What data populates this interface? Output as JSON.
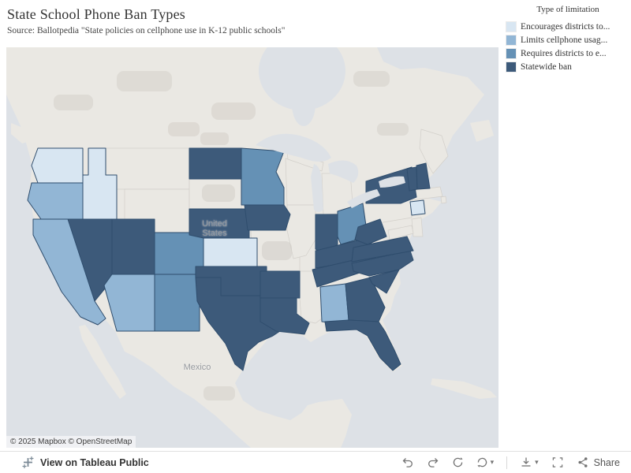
{
  "header": {
    "title": "State School Phone Ban Types",
    "subtitle": "Source: Ballotpedia \"State policies on cellphone use in K-12 public schools\""
  },
  "legend": {
    "title": "Type of limitation",
    "items": [
      {
        "label": "Encourages districts to...",
        "color": "#d8e6f2"
      },
      {
        "label": "Limits cellphone usag...",
        "color": "#92b6d5"
      },
      {
        "label": "Requires districts to e...",
        "color": "#6591b5"
      },
      {
        "label": "Statewide ban",
        "color": "#3d5a7a"
      }
    ]
  },
  "map": {
    "labels": {
      "country_us": "United States",
      "country_mx": "Mexico"
    },
    "attribution": "© 2025 Mapbox  © OpenStreetMap"
  },
  "toolbar": {
    "view_on_tableau": "View on Tableau Public",
    "share_label": "Share"
  },
  "chart_data": {
    "type": "choropleth",
    "title": "State School Phone Ban Types",
    "source": "Ballotpedia \"State policies on cellphone use in K-12 public schools\"",
    "legend_title": "Type of limitation",
    "region": "United States",
    "colors": {
      "land": "#eae8e3",
      "water": "#dde1e6",
      "no_data_border": "#d2cfca",
      "state_border": "#2f4d6d"
    },
    "categories": [
      {
        "label": "Encourages districts to...",
        "color": "#d8e6f2",
        "states": [
          "Washington",
          "Idaho",
          "Kansas",
          "Connecticut"
        ]
      },
      {
        "label": "Limits cellphone usag...",
        "color": "#92b6d5",
        "states": [
          "Oregon",
          "California",
          "Arizona",
          "Alabama"
        ]
      },
      {
        "label": "Requires districts to e...",
        "color": "#6591b5",
        "states": [
          "Minnesota",
          "Colorado",
          "New Mexico",
          "Ohio"
        ]
      },
      {
        "label": "Statewide ban",
        "color": "#3d5a7a",
        "states": [
          "North Dakota",
          "Nebraska",
          "Iowa",
          "Nevada",
          "Utah",
          "Oklahoma",
          "Texas",
          "Arkansas",
          "Louisiana",
          "Indiana",
          "Kentucky",
          "Tennessee",
          "West Virginia",
          "Virginia",
          "North Carolina",
          "South Carolina",
          "Georgia",
          "Florida",
          "New York",
          "Vermont",
          "New Hampshire"
        ]
      }
    ]
  }
}
